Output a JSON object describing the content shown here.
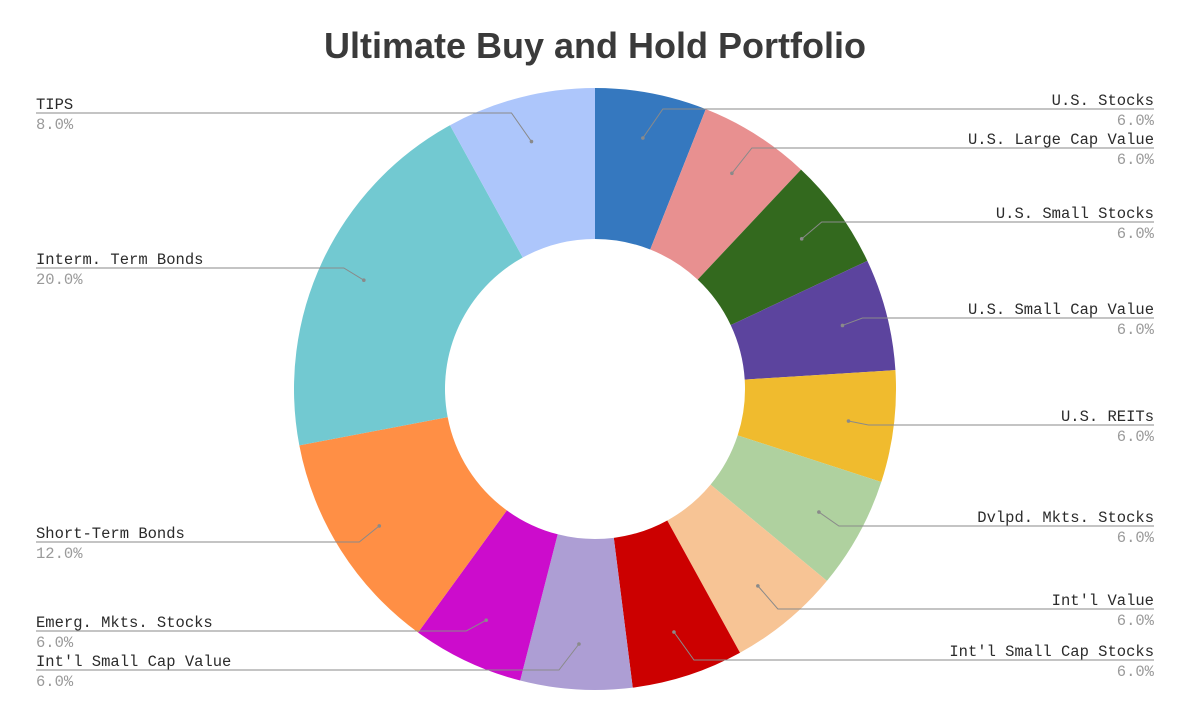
{
  "chart_data": {
    "type": "pie",
    "style": "donut",
    "title": "Ultimate Buy and Hold Portfolio",
    "slices": [
      {
        "label": "U.S. Stocks",
        "value": 6.0,
        "value_label": "6.0%",
        "color": "#3578bf",
        "side": "right"
      },
      {
        "label": "U.S. Large Cap Value",
        "value": 6.0,
        "value_label": "6.0%",
        "color": "#e89090",
        "side": "right"
      },
      {
        "label": "U.S. Small Stocks",
        "value": 6.0,
        "value_label": "6.0%",
        "color": "#33691e",
        "side": "right"
      },
      {
        "label": "U.S. Small Cap Value",
        "value": 6.0,
        "value_label": "6.0%",
        "color": "#5c449e",
        "side": "right"
      },
      {
        "label": "U.S. REITs",
        "value": 6.0,
        "value_label": "6.0%",
        "color": "#f0bb2e",
        "side": "right"
      },
      {
        "label": "Dvlpd. Mkts. Stocks",
        "value": 6.0,
        "value_label": "6.0%",
        "color": "#afd19f",
        "side": "right"
      },
      {
        "label": "Int'l Value",
        "value": 6.0,
        "value_label": "6.0%",
        "color": "#f7c495",
        "side": "right"
      },
      {
        "label": "Int'l Small Cap Stocks",
        "value": 6.0,
        "value_label": "6.0%",
        "color": "#cc0000",
        "side": "right"
      },
      {
        "label": "Int'l Small Cap Value",
        "value": 6.0,
        "value_label": "6.0%",
        "color": "#ad9ed4",
        "side": "left"
      },
      {
        "label": "Emerg. Mkts. Stocks",
        "value": 6.0,
        "value_label": "6.0%",
        "color": "#cc0ccc",
        "side": "left"
      },
      {
        "label": "Short-Term Bonds",
        "value": 12.0,
        "value_label": "12.0%",
        "color": "#ff8f45",
        "side": "left"
      },
      {
        "label": "Interm. Term Bonds",
        "value": 20.0,
        "value_label": "20.0%",
        "color": "#72c9d1",
        "side": "left"
      },
      {
        "label": "TIPS",
        "value": 8.0,
        "value_label": "8.0%",
        "color": "#adc6fb",
        "side": "left"
      }
    ],
    "start_angle_deg": 0,
    "direction": "clockwise",
    "legend": "none",
    "label_placement": "outside-with-leader-lines"
  }
}
